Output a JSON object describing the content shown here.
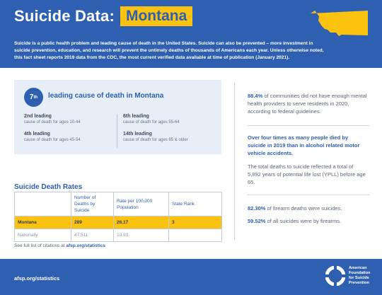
{
  "header": {
    "title_prefix": "Suicide Data:",
    "state_name": "Montana",
    "intro": "Suicide is a public health problem and leading cause of death in the United States. Suicide can also be prevented – more investment in suicide prevention, education, and research will prevent the untimely deaths of thousands of Americans each year. Unless otherwise noted, this fact sheet reports 2019 data from the CDC, the most current verified data available at time of publication (January 2021).",
    "map_icon": "montana-map-icon"
  },
  "rank_panel": {
    "rank_number": "7",
    "rank_suffix": "th",
    "rank_title": "leading cause of death in Montana",
    "stats": [
      {
        "label": "2nd leading",
        "sub": "cause of death for ages 10-44"
      },
      {
        "label": "6th leading",
        "sub": "cause of death for ages 55-64"
      },
      {
        "label": "4th leading",
        "sub": "cause of death for ages 45-54"
      },
      {
        "label": "14th leading",
        "sub": "cause of death for ages 65 & older"
      }
    ]
  },
  "rates": {
    "title": "Suicide Death Rates",
    "headers": [
      "",
      "Number of Deaths by Suicide",
      "Rate per 100,000 Population",
      "State Rank"
    ],
    "rows": [
      [
        "Montana",
        "289",
        "26.17",
        "3"
      ],
      [
        "Nationally",
        "47,511",
        "13.93",
        ""
      ]
    ]
  },
  "citation": {
    "prefix": "See full list of citations at ",
    "link": "afsp.org/statistics"
  },
  "right": {
    "p1_hl": "88.4%",
    "p1_text": " of communities did not have enough mental health providers to serve residents in 2020, according to federal guidelines.",
    "p2": "Over four times as many people died by suicide in 2019 than in alcohol related motor vehicle accidents.",
    "p3": "The total deaths to suicide reflected a total of 5,892 years of potential life lost (YPLL) before age 65.",
    "p4_hl": "82.30%",
    "p4_text": " of firearm deaths were suicides.",
    "p5_hl": "59.52%",
    "p5_text": " of all suicides were by firearms."
  },
  "footer": {
    "link": "afsp.org/statistics",
    "org_line1": "American",
    "org_line2": "Foundation",
    "org_line3": "for Suicide",
    "org_line4": "Prevention",
    "logo_icon": "afsp-lifering-logo"
  },
  "colors": {
    "brand_blue": "#2e5fb0",
    "accent_yellow": "#fbc30f",
    "panel_bg": "#e7eef8"
  }
}
